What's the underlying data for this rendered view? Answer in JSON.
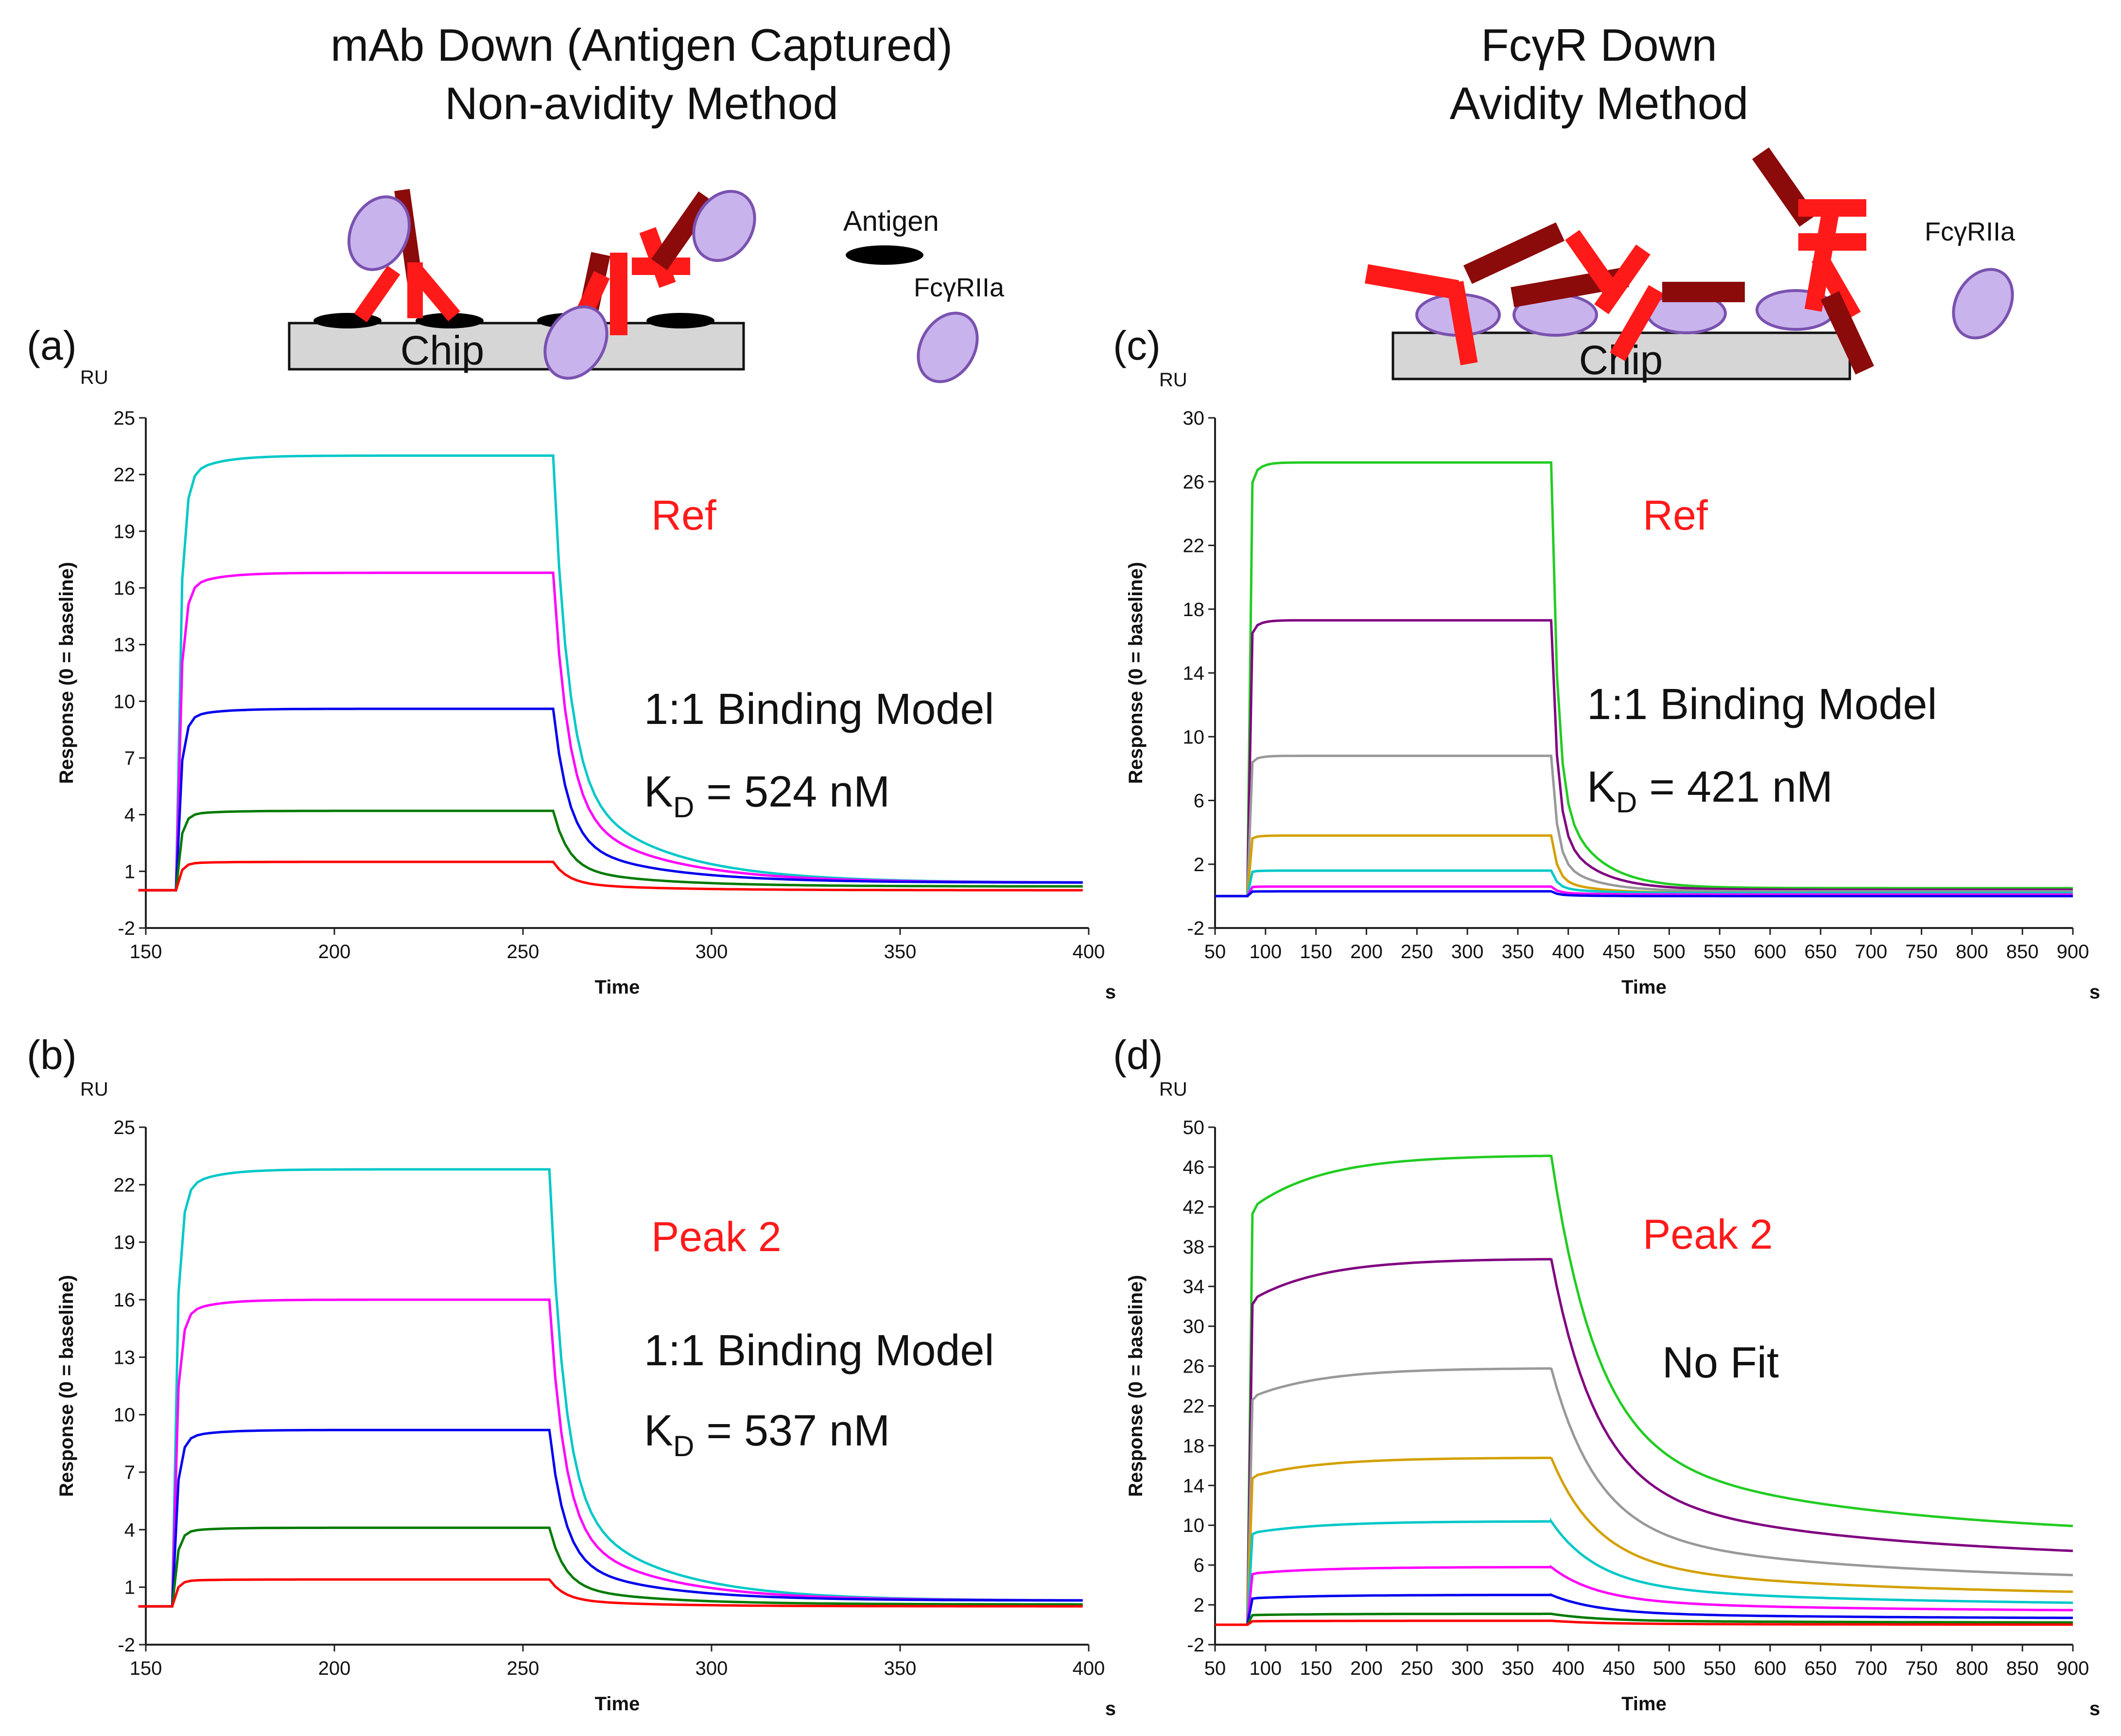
{
  "colors": {
    "red": "#ff1a1a",
    "dark_red": "#8b0a0a",
    "chip": "#d6d6d6",
    "receptor": "#c9b3ec",
    "receptor_stroke": "#7a52b0"
  },
  "header": {
    "left": {
      "line1": "mAb Down (Antigen Captured)",
      "line2": "Non-avidity Method"
    },
    "right": {
      "line1": "FcγR Down",
      "line2": "Avidity Method"
    }
  },
  "schematic": {
    "left": {
      "chip": "Chip",
      "legend_antigen": "Antigen",
      "legend_receptor": "FcγRIIa"
    },
    "right": {
      "chip": "Chip",
      "legend_receptor": "FcγRIIa"
    }
  },
  "chart_data": [
    {
      "panel": "(a)",
      "type": "line",
      "unit": "RU",
      "title": "Ref",
      "annotation": "1:1 Binding Model",
      "kd_prefix": "K",
      "kd_sub": "D",
      "kd_value": " = 524 nM",
      "xlabel": "Time",
      "x_unit": "s",
      "ylabel": "Response (0 = baseline)",
      "xlim": [
        150,
        400
      ],
      "ylim": [
        -2,
        25
      ],
      "xticks": [
        150,
        200,
        250,
        300,
        350,
        400
      ],
      "yticks": [
        -2,
        1,
        4,
        7,
        10,
        13,
        16,
        19,
        22,
        25
      ],
      "inject_start": 158,
      "inject_end": 258,
      "series": [
        {
          "color": "#00c8c8",
          "plateau": 23.0,
          "end": 0.4
        },
        {
          "color": "#ff00ff",
          "plateau": 16.8,
          "end": 0.4
        },
        {
          "color": "#0000ee",
          "plateau": 9.6,
          "end": 0.4
        },
        {
          "color": "#007a00",
          "plateau": 4.2,
          "end": 0.2
        },
        {
          "color": "#ff0000",
          "plateau": 1.5,
          "end": 0.0
        }
      ]
    },
    {
      "panel": "(b)",
      "type": "line",
      "unit": "RU",
      "title": "Peak 2",
      "annotation": "1:1 Binding Model",
      "kd_prefix": "K",
      "kd_sub": "D",
      "kd_value": " = 537 nM",
      "xlabel": "Time",
      "x_unit": "s",
      "ylabel": "Response (0 = baseline)",
      "xlim": [
        150,
        400
      ],
      "ylim": [
        -2,
        25
      ],
      "xticks": [
        150,
        200,
        250,
        300,
        350,
        400
      ],
      "yticks": [
        -2,
        1,
        4,
        7,
        10,
        13,
        16,
        19,
        22,
        25
      ],
      "inject_start": 157,
      "inject_end": 257,
      "series": [
        {
          "color": "#00c8c8",
          "plateau": 22.8,
          "end": 0.3
        },
        {
          "color": "#ff00ff",
          "plateau": 16.0,
          "end": 0.3
        },
        {
          "color": "#0000ee",
          "plateau": 9.2,
          "end": 0.3
        },
        {
          "color": "#007a00",
          "plateau": 4.1,
          "end": 0.1
        },
        {
          "color": "#ff0000",
          "plateau": 1.4,
          "end": 0.0
        }
      ]
    },
    {
      "panel": "(c)",
      "type": "line",
      "unit": "RU",
      "title": "Ref",
      "annotation": "1:1 Binding Model",
      "kd_prefix": "K",
      "kd_sub": "D",
      "kd_value": " = 421 nM",
      "xlabel": "Time",
      "x_unit": "s",
      "ylabel": "Response (0 = baseline)",
      "xlim": [
        50,
        900
      ],
      "ylim": [
        -2,
        30
      ],
      "xticks": [
        50,
        100,
        150,
        200,
        250,
        300,
        350,
        400,
        450,
        500,
        550,
        600,
        650,
        700,
        750,
        800,
        850,
        900
      ],
      "yticks": [
        -2,
        2,
        6,
        10,
        14,
        18,
        22,
        26,
        30
      ],
      "inject_start": 82,
      "inject_end": 383,
      "series": [
        {
          "color": "#22cc22",
          "plateau": 27.2,
          "end": 0.5
        },
        {
          "color": "#800080",
          "plateau": 17.3,
          "end": 0.4
        },
        {
          "color": "#999999",
          "plateau": 8.8,
          "end": 0.3
        },
        {
          "color": "#d4a000",
          "plateau": 3.8,
          "end": 0.2
        },
        {
          "color": "#00c8c8",
          "plateau": 1.6,
          "end": 0.2
        },
        {
          "color": "#ff00ff",
          "plateau": 0.6,
          "end": 0.1
        },
        {
          "color": "#0000ee",
          "plateau": 0.3,
          "end": 0.0
        }
      ]
    },
    {
      "panel": "(d)",
      "type": "line",
      "unit": "RU",
      "title": "Peak 2",
      "annotation": "No Fit",
      "xlabel": "Time",
      "x_unit": "s",
      "ylabel": "Response (0 = baseline)",
      "xlim": [
        50,
        900
      ],
      "ylim": [
        -2,
        50
      ],
      "xticks": [
        50,
        100,
        150,
        200,
        250,
        300,
        350,
        400,
        450,
        500,
        550,
        600,
        650,
        700,
        750,
        800,
        850,
        900
      ],
      "yticks": [
        -2,
        2,
        6,
        10,
        14,
        18,
        22,
        26,
        30,
        34,
        38,
        42,
        46,
        50
      ],
      "inject_start": 82,
      "inject_end": 383,
      "series": [
        {
          "color": "#22cc22",
          "plateau": 47.2,
          "end": 8.5
        },
        {
          "color": "#800080",
          "plateau": 36.8,
          "end": 6.3
        },
        {
          "color": "#999999",
          "plateau": 25.8,
          "end": 4.2
        },
        {
          "color": "#d4a000",
          "plateau": 16.8,
          "end": 2.8
        },
        {
          "color": "#00c8c8",
          "plateau": 10.4,
          "end": 1.9
        },
        {
          "color": "#ff00ff",
          "plateau": 5.8,
          "end": 1.3
        },
        {
          "color": "#0000ee",
          "plateau": 3.0,
          "end": 0.6
        },
        {
          "color": "#007a00",
          "plateau": 1.1,
          "end": 0.2
        },
        {
          "color": "#ff0000",
          "plateau": 0.4,
          "end": 0.0
        }
      ]
    }
  ]
}
